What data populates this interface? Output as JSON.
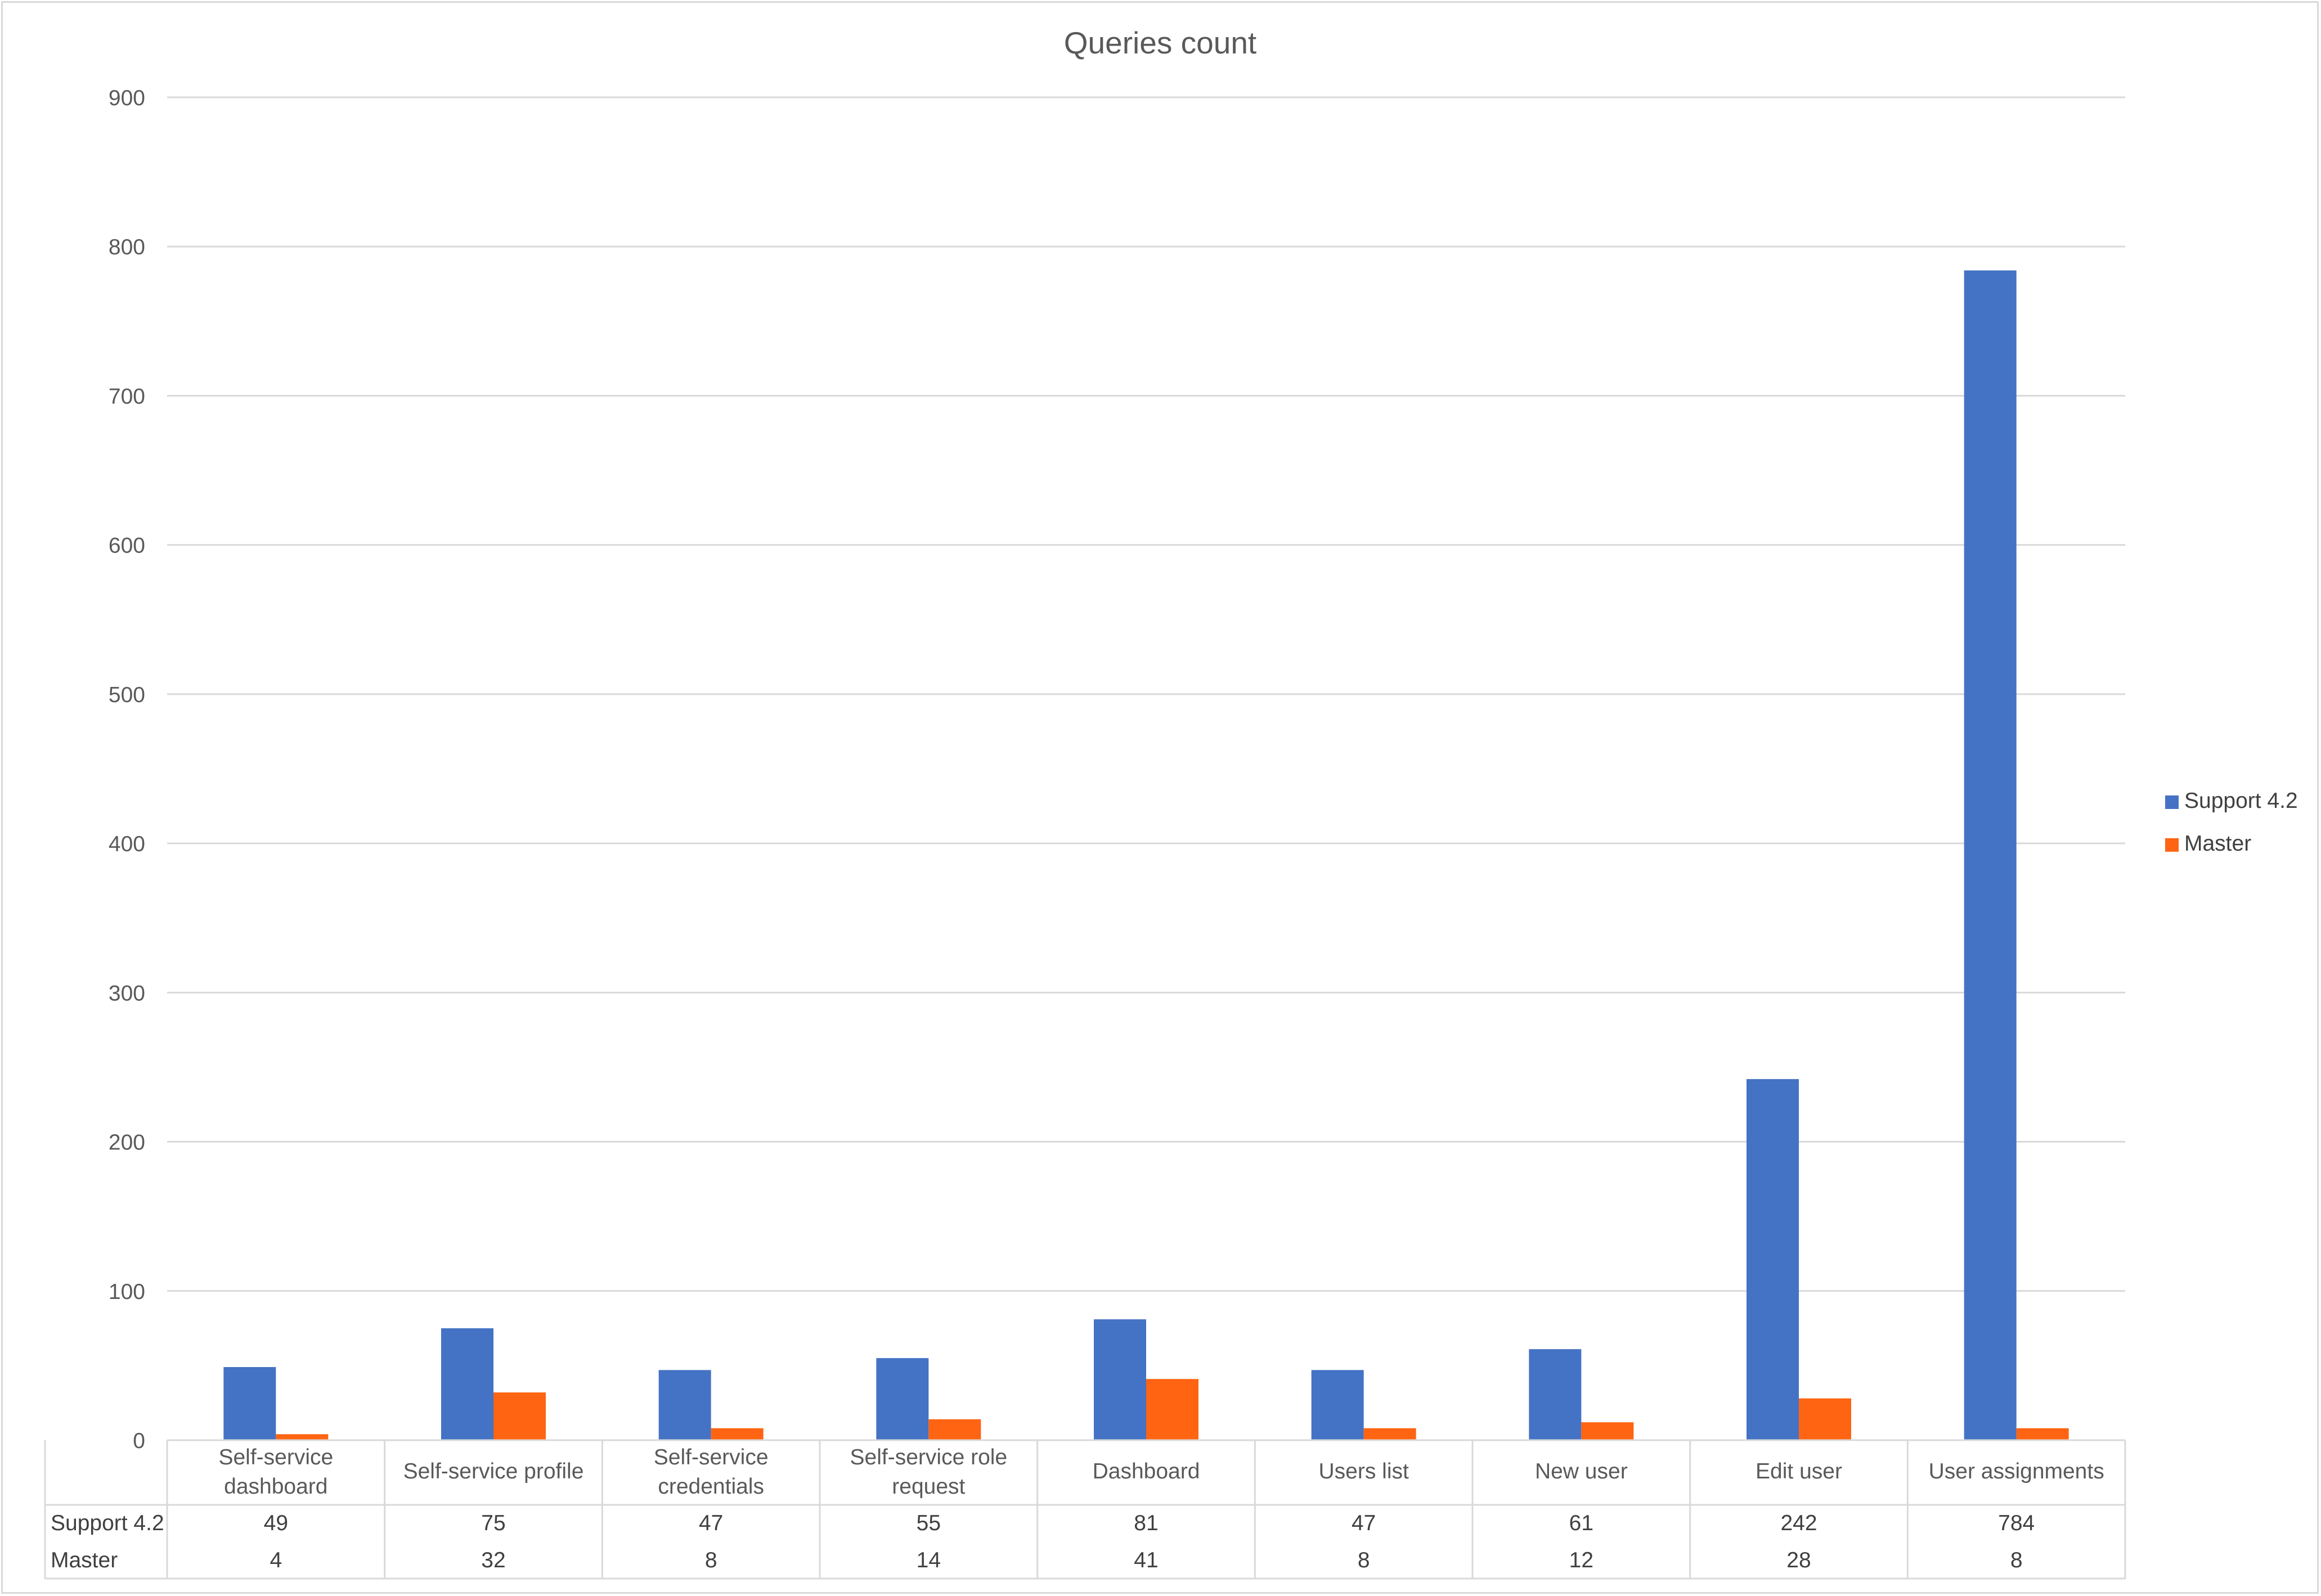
{
  "chart_data": {
    "type": "bar",
    "title": "Queries count",
    "xlabel": "",
    "ylabel": "",
    "ylim": [
      0,
      900
    ],
    "yticks": [
      0,
      100,
      200,
      300,
      400,
      500,
      600,
      700,
      800,
      900
    ],
    "grid": true,
    "legend_position": "right",
    "data_table": true,
    "categories": [
      [
        "Self-service",
        "dashboard"
      ],
      [
        "Self-service profile"
      ],
      [
        "Self-service",
        "credentials"
      ],
      [
        "Self-service role",
        "request"
      ],
      [
        "Dashboard"
      ],
      [
        "Users list"
      ],
      [
        "New user"
      ],
      [
        "Edit user"
      ],
      [
        "User assignments"
      ]
    ],
    "series": [
      {
        "name": "Support 4.2",
        "color": "#4472c4",
        "values": [
          49,
          75,
          47,
          55,
          81,
          47,
          61,
          242,
          784
        ]
      },
      {
        "name": "Master",
        "color": "#ff6412",
        "values": [
          4,
          32,
          8,
          14,
          41,
          8,
          12,
          28,
          8
        ]
      }
    ]
  }
}
